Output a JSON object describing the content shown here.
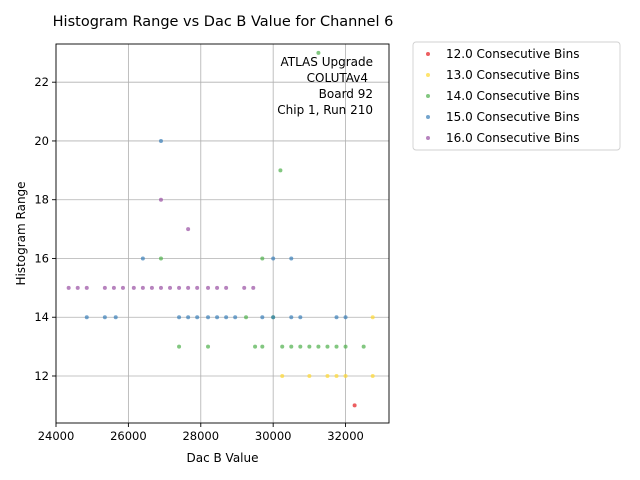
{
  "chart_data": {
    "type": "scatter",
    "title": "Histogram Range vs Dac B Value for Channel 6",
    "xlabel": "Dac B Value",
    "ylabel": "Histogram Range",
    "xlim": [
      24000,
      33200
    ],
    "ylim": [
      10.4,
      23.3
    ],
    "xticks": [
      24000,
      26000,
      28000,
      30000,
      32000
    ],
    "yticks": [
      12,
      14,
      16,
      18,
      20,
      22
    ],
    "grid": true,
    "legend_position": "outside-right",
    "annotation": [
      "ATLAS Upgrade",
      "COLUTAv4",
      "Board 92",
      "Chip 1, Run 210"
    ],
    "series": [
      {
        "name": "12.0 Consecutive Bins",
        "color": "#e41a1c",
        "points": [
          [
            32250,
            11
          ]
        ]
      },
      {
        "name": "13.0 Consecutive Bins",
        "color": "#ffd92f",
        "points": [
          [
            30250,
            12
          ],
          [
            31000,
            12
          ],
          [
            31500,
            12
          ],
          [
            31750,
            12
          ],
          [
            32000,
            12
          ],
          [
            32750,
            12
          ],
          [
            32750,
            14
          ]
        ]
      },
      {
        "name": "14.0 Consecutive Bins",
        "color": "#4daf4a",
        "points": [
          [
            27400,
            13
          ],
          [
            28200,
            13
          ],
          [
            29500,
            13
          ],
          [
            29700,
            13
          ],
          [
            30250,
            13
          ],
          [
            30500,
            13
          ],
          [
            30750,
            13
          ],
          [
            31000,
            13
          ],
          [
            31250,
            13
          ],
          [
            31500,
            13
          ],
          [
            31750,
            13
          ],
          [
            32000,
            13
          ],
          [
            32500,
            13
          ],
          [
            29250,
            14
          ],
          [
            30000,
            14
          ],
          [
            26900,
            16
          ],
          [
            29700,
            16
          ],
          [
            30200,
            19
          ],
          [
            31250,
            23
          ]
        ]
      },
      {
        "name": "15.0 Consecutive Bins",
        "color": "#377eb8",
        "points": [
          [
            24850,
            14
          ],
          [
            25350,
            14
          ],
          [
            25650,
            14
          ],
          [
            27400,
            14
          ],
          [
            27650,
            14
          ],
          [
            27900,
            14
          ],
          [
            28200,
            14
          ],
          [
            28450,
            14
          ],
          [
            28700,
            14
          ],
          [
            28950,
            14
          ],
          [
            29700,
            14
          ],
          [
            30000,
            14
          ],
          [
            30500,
            14
          ],
          [
            30750,
            14
          ],
          [
            31750,
            14
          ],
          [
            32000,
            14
          ],
          [
            26400,
            16
          ],
          [
            30000,
            16
          ],
          [
            30500,
            16
          ],
          [
            26900,
            20
          ]
        ]
      },
      {
        "name": "16.0 Consecutive Bins",
        "color": "#984ea3",
        "points": [
          [
            24350,
            15
          ],
          [
            24600,
            15
          ],
          [
            24850,
            15
          ],
          [
            25350,
            15
          ],
          [
            25600,
            15
          ],
          [
            25850,
            15
          ],
          [
            26150,
            15
          ],
          [
            26400,
            15
          ],
          [
            26650,
            15
          ],
          [
            26900,
            15
          ],
          [
            27150,
            15
          ],
          [
            27400,
            15
          ],
          [
            27650,
            15
          ],
          [
            27900,
            15
          ],
          [
            28200,
            15
          ],
          [
            28450,
            15
          ],
          [
            28700,
            15
          ],
          [
            29200,
            15
          ],
          [
            29450,
            15
          ],
          [
            27650,
            17
          ],
          [
            26900,
            18
          ]
        ]
      }
    ]
  }
}
